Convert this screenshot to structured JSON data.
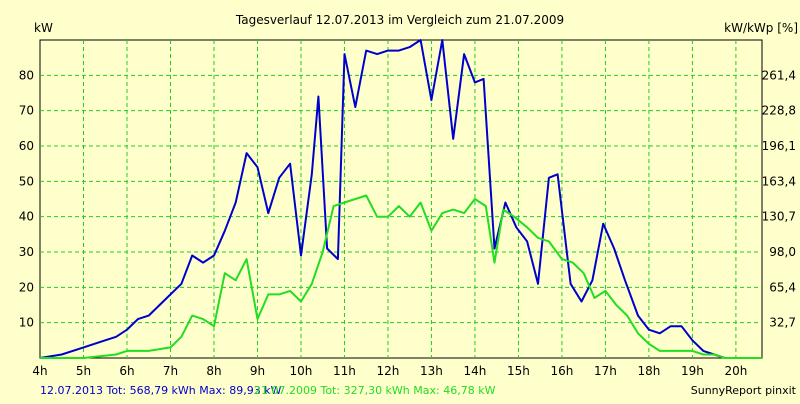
{
  "colors": {
    "background": "#ffffcc",
    "grid": "#22cc22",
    "axis": "#000000",
    "series_2013": "#0000cc",
    "series_2009": "#22dd22",
    "text": "#000000"
  },
  "chart_data": {
    "type": "line",
    "title": "Tagesverlauf 12.07.2013 im Vergleich zum 21.07.2009",
    "ylabel_left": "kW",
    "ylabel_right": "kW/kWp [%]",
    "x_ticks": [
      "4h",
      "5h",
      "6h",
      "7h",
      "8h",
      "9h",
      "10h",
      "11h",
      "12h",
      "13h",
      "14h",
      "15h",
      "16h",
      "17h",
      "18h",
      "19h",
      "20h"
    ],
    "xlim": [
      4.0,
      20.6
    ],
    "ylim": [
      0,
      90
    ],
    "y_ticks_left": [
      10,
      20,
      30,
      40,
      50,
      60,
      70,
      80
    ],
    "y_ticks_right": [
      {
        "v": 10,
        "label": "32,7"
      },
      {
        "v": 20,
        "label": "65,4"
      },
      {
        "v": 30,
        "label": "98,0"
      },
      {
        "v": 40,
        "label": "130,7"
      },
      {
        "v": 50,
        "label": "163,4"
      },
      {
        "v": 60,
        "label": "196,1"
      },
      {
        "v": 70,
        "label": "228,8"
      },
      {
        "v": 80,
        "label": "261,4"
      }
    ],
    "grid": true,
    "series": [
      {
        "key": "s2013",
        "values": [
          [
            4.0,
            0
          ],
          [
            4.5,
            1
          ],
          [
            5.0,
            3
          ],
          [
            5.5,
            5
          ],
          [
            5.75,
            6
          ],
          [
            6.0,
            8
          ],
          [
            6.25,
            11
          ],
          [
            6.5,
            12
          ],
          [
            6.75,
            15
          ],
          [
            7.0,
            18
          ],
          [
            7.25,
            21
          ],
          [
            7.5,
            29
          ],
          [
            7.75,
            27
          ],
          [
            8.0,
            29
          ],
          [
            8.25,
            36
          ],
          [
            8.5,
            44
          ],
          [
            8.75,
            58
          ],
          [
            9.0,
            54
          ],
          [
            9.25,
            41
          ],
          [
            9.5,
            51
          ],
          [
            9.75,
            55
          ],
          [
            10.0,
            29
          ],
          [
            10.25,
            52
          ],
          [
            10.4,
            74
          ],
          [
            10.6,
            31
          ],
          [
            10.85,
            28
          ],
          [
            11.0,
            86
          ],
          [
            11.25,
            71
          ],
          [
            11.5,
            87
          ],
          [
            11.75,
            86
          ],
          [
            12.0,
            87
          ],
          [
            12.25,
            87
          ],
          [
            12.5,
            88
          ],
          [
            12.75,
            90
          ],
          [
            13.0,
            73
          ],
          [
            13.25,
            90
          ],
          [
            13.5,
            62
          ],
          [
            13.75,
            86
          ],
          [
            14.0,
            78
          ],
          [
            14.2,
            79
          ],
          [
            14.45,
            31
          ],
          [
            14.7,
            44
          ],
          [
            14.95,
            37
          ],
          [
            15.2,
            33
          ],
          [
            15.45,
            21
          ],
          [
            15.7,
            51
          ],
          [
            15.9,
            52
          ],
          [
            16.2,
            21
          ],
          [
            16.45,
            16
          ],
          [
            16.7,
            22
          ],
          [
            16.95,
            38
          ],
          [
            17.2,
            31
          ],
          [
            17.45,
            22
          ],
          [
            17.75,
            12
          ],
          [
            18.0,
            8
          ],
          [
            18.25,
            7
          ],
          [
            18.5,
            9
          ],
          [
            18.75,
            9
          ],
          [
            19.0,
            5
          ],
          [
            19.25,
            2
          ],
          [
            19.5,
            1
          ],
          [
            19.75,
            0
          ],
          [
            20.6,
            0
          ]
        ]
      },
      {
        "key": "s2009",
        "values": [
          [
            4.0,
            0
          ],
          [
            5.0,
            0
          ],
          [
            5.75,
            1
          ],
          [
            6.0,
            2
          ],
          [
            6.5,
            2
          ],
          [
            7.0,
            3
          ],
          [
            7.25,
            6
          ],
          [
            7.5,
            12
          ],
          [
            7.75,
            11
          ],
          [
            8.0,
            9
          ],
          [
            8.25,
            24
          ],
          [
            8.5,
            22
          ],
          [
            8.75,
            28
          ],
          [
            9.0,
            11
          ],
          [
            9.25,
            18
          ],
          [
            9.5,
            18
          ],
          [
            9.75,
            19
          ],
          [
            10.0,
            16
          ],
          [
            10.25,
            21
          ],
          [
            10.5,
            30
          ],
          [
            10.75,
            43
          ],
          [
            11.0,
            44
          ],
          [
            11.25,
            45
          ],
          [
            11.5,
            46
          ],
          [
            11.75,
            40
          ],
          [
            12.0,
            40
          ],
          [
            12.25,
            43
          ],
          [
            12.5,
            40
          ],
          [
            12.75,
            44
          ],
          [
            13.0,
            36
          ],
          [
            13.25,
            41
          ],
          [
            13.5,
            42
          ],
          [
            13.75,
            41
          ],
          [
            14.0,
            45
          ],
          [
            14.25,
            43
          ],
          [
            14.45,
            27
          ],
          [
            14.65,
            42
          ],
          [
            14.9,
            40
          ],
          [
            15.2,
            37
          ],
          [
            15.45,
            34
          ],
          [
            15.7,
            33
          ],
          [
            16.0,
            28
          ],
          [
            16.25,
            27
          ],
          [
            16.5,
            24
          ],
          [
            16.75,
            17
          ],
          [
            17.0,
            19
          ],
          [
            17.25,
            15
          ],
          [
            17.5,
            12
          ],
          [
            17.75,
            7
          ],
          [
            18.0,
            4
          ],
          [
            18.25,
            2
          ],
          [
            18.5,
            2
          ],
          [
            18.75,
            2
          ],
          [
            19.0,
            2
          ],
          [
            19.25,
            1
          ],
          [
            19.5,
            1
          ],
          [
            19.75,
            0
          ],
          [
            20.6,
            0
          ]
        ]
      }
    ],
    "legend": {
      "s2013": "12.07.2013 Tot: 568,79 kWh Max: 89,93 kW",
      "s2009": "21.07.2009 Tot: 327,30 kWh Max: 46,78 kW",
      "credit": "SunnyReport pinxit"
    }
  }
}
